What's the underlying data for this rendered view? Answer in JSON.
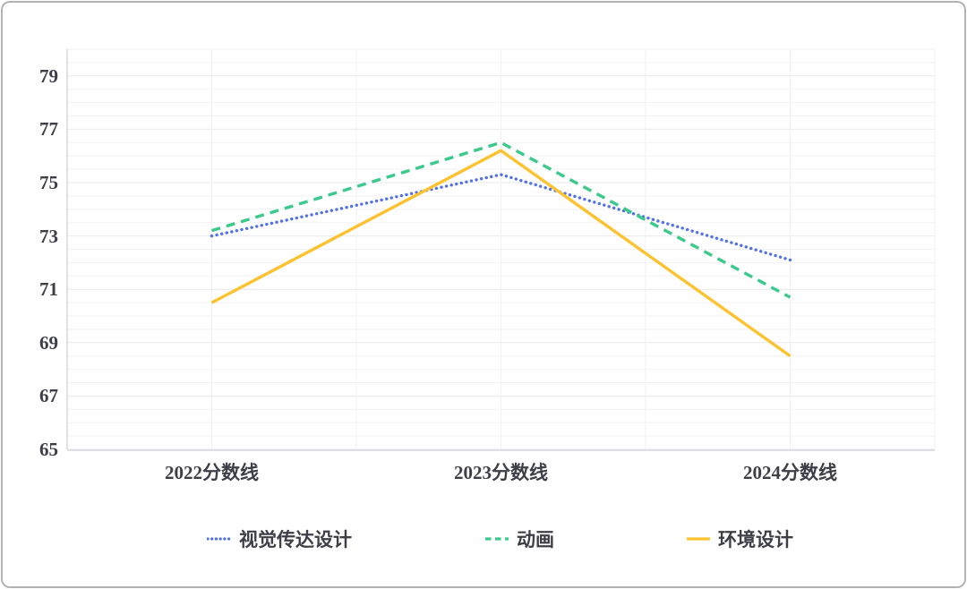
{
  "chart_data": {
    "type": "line",
    "title": "",
    "xlabel": "",
    "ylabel": "",
    "categories": [
      "2022分数线",
      "2023分数线",
      "2024分数线"
    ],
    "series": [
      {
        "name": "视觉传达设计",
        "values": [
          73.0,
          75.3,
          72.1
        ],
        "color": "#5271e8",
        "line_style": "dotted"
      },
      {
        "name": "动画",
        "values": [
          73.2,
          76.5,
          70.7
        ],
        "color": "#3cc98c",
        "line_style": "dashed"
      },
      {
        "name": "环境设计",
        "values": [
          70.5,
          76.2,
          68.5
        ],
        "color": "#fcc230",
        "line_style": "solid"
      }
    ],
    "ylim": [
      65,
      80
    ],
    "yticks": [
      79,
      77,
      75,
      73,
      71,
      69,
      67,
      65
    ],
    "minor_gridline_step": 0.5,
    "grid": true,
    "legend_position": "bottom",
    "colors": {
      "text": "#3e3e48",
      "axis_line": "#d7d7de",
      "major_gridline": "#e9e9ee",
      "minor_gridline": "#f2f2f5",
      "frame_border": "#b3b3b6",
      "background": "#ffffff"
    }
  }
}
